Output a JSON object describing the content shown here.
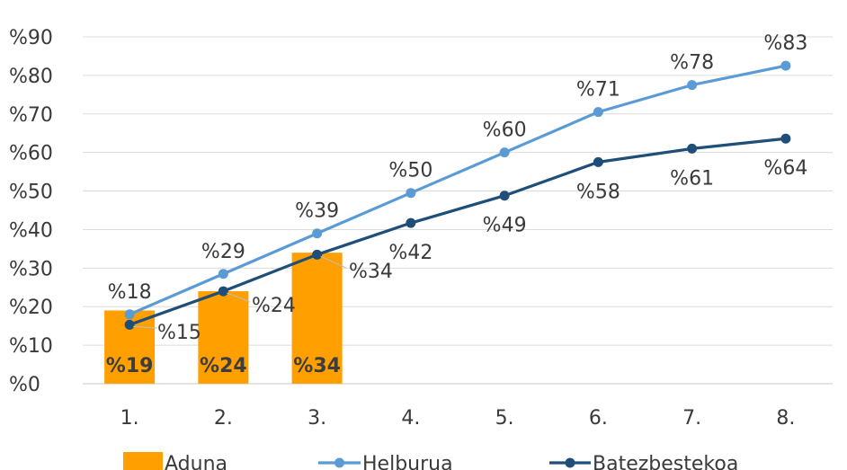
{
  "chart_data": {
    "type": "bar+line",
    "categories": [
      "1.",
      "2.",
      "3.",
      "4.",
      "5.",
      "6.",
      "7.",
      "8."
    ],
    "ylim": [
      0,
      90
    ],
    "yticks": [
      "%0",
      "%10",
      "%20",
      "%30",
      "%40",
      "%50",
      "%60",
      "%70",
      "%80",
      "%90"
    ],
    "ytick_values": [
      0,
      10,
      20,
      30,
      40,
      50,
      60,
      70,
      80,
      90
    ],
    "grid": true,
    "legend_position": "bottom",
    "series": [
      {
        "name": "Aduna",
        "type": "bar",
        "color": "#FF9F00",
        "values": [
          19,
          24,
          34,
          null,
          null,
          null,
          null,
          null
        ],
        "labels": [
          "%19",
          "%24",
          "%34"
        ]
      },
      {
        "name": "Helburua",
        "type": "line",
        "color": "#5B9BD5",
        "values": [
          18,
          28.5,
          39,
          49.5,
          60,
          70.5,
          77.5,
          82.5
        ],
        "labels": [
          "%18",
          "%29",
          "%39",
          "%50",
          "%60",
          "%71",
          "%78",
          "%83"
        ]
      },
      {
        "name": "Batezbestekoa",
        "type": "line",
        "color": "#1F4E79",
        "values": [
          15.3,
          24,
          33.5,
          41.7,
          48.8,
          57.5,
          61,
          63.6
        ],
        "labels": [
          "%15",
          "%24",
          "%34",
          "%42",
          "%49",
          "%58",
          "%61",
          "%64"
        ]
      }
    ]
  }
}
